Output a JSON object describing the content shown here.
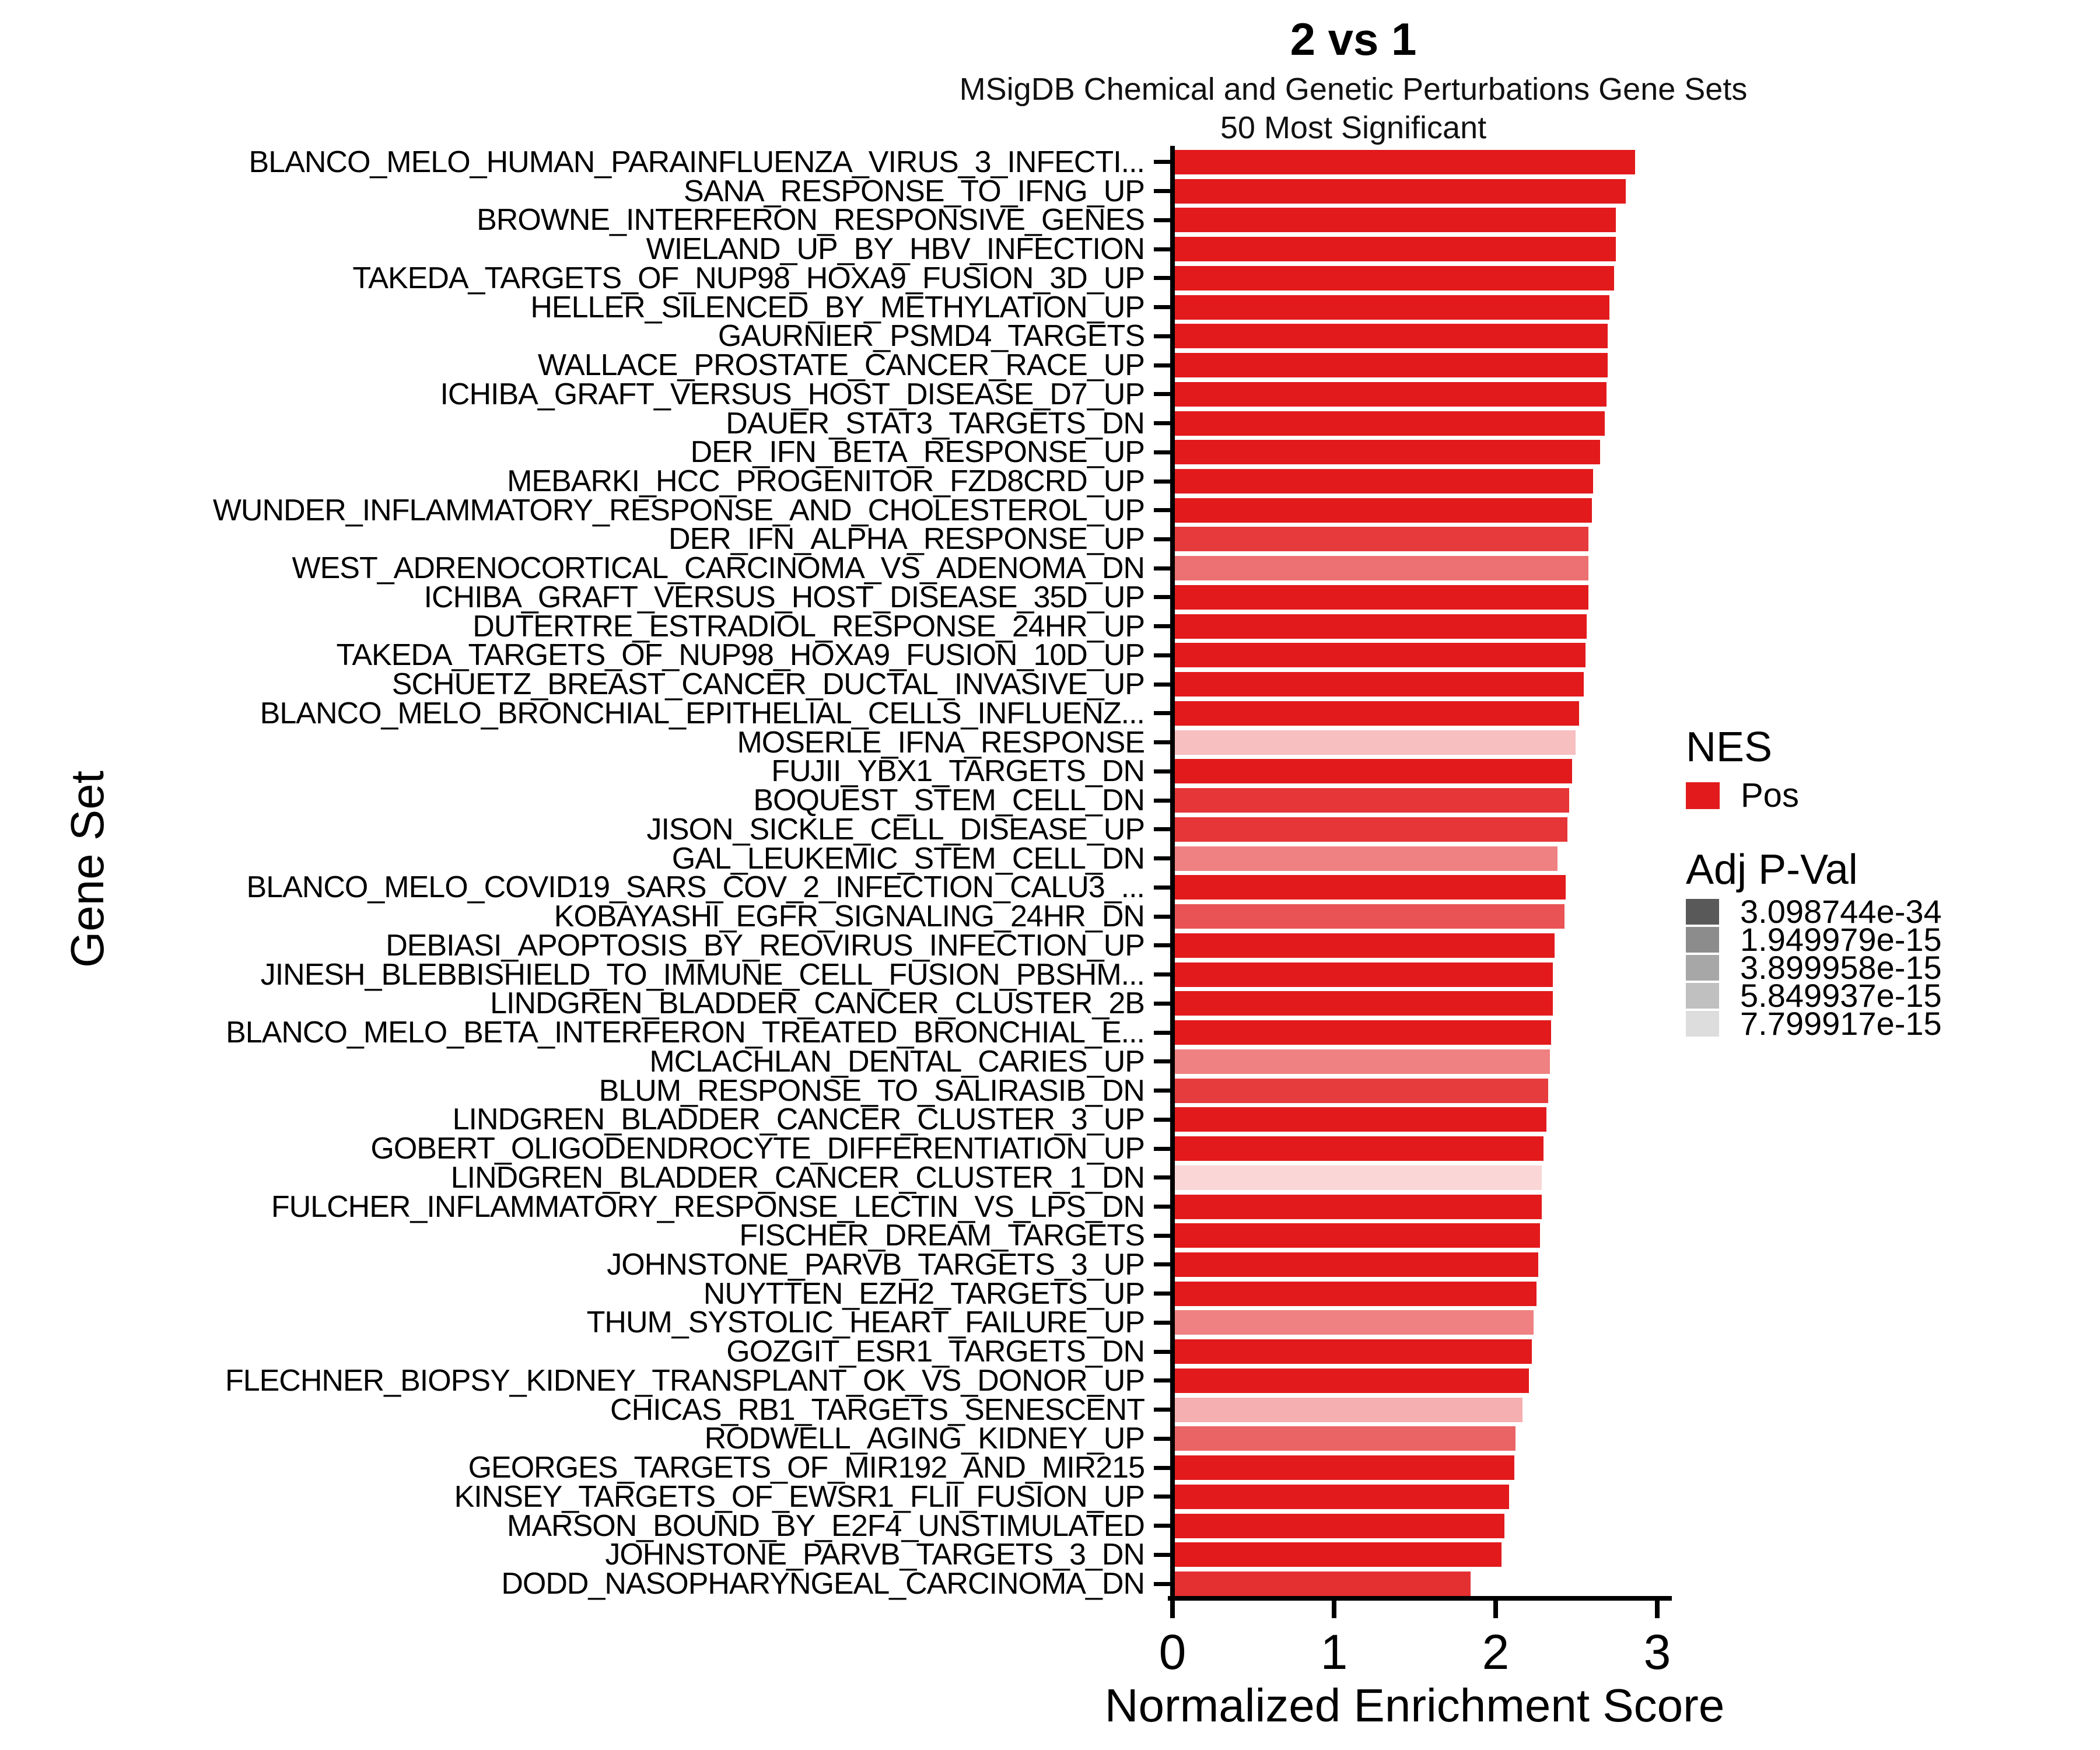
{
  "chart_data": {
    "type": "bar",
    "orientation": "horizontal",
    "title": "2 vs 1",
    "subtitle": [
      "MSigDB Chemical and Genetic Perturbations Gene Sets",
      "50 Most Significant"
    ],
    "xlabel": "Normalized Enrichment Score",
    "ylabel": "Gene Set",
    "xlim": [
      0,
      3
    ],
    "x_ticks": [
      "0",
      "1",
      "2",
      "3"
    ],
    "grid": "off",
    "bar_base_color": "#E21A1C",
    "legend_position": "right",
    "legend": {
      "nes_title": "NES",
      "nes_items": [
        {
          "label": "Pos",
          "color": "#E21A1C"
        }
      ],
      "pval_title": "Adj P-Val",
      "pval_items": [
        {
          "label": "3.098744e-34",
          "color": "#595959"
        },
        {
          "label": "1.949979e-15",
          "color": "#8C8C8C"
        },
        {
          "label": "3.899958e-15",
          "color": "#A7A7A7"
        },
        {
          "label": "5.849937e-15",
          "color": "#C0C0C0"
        },
        {
          "label": "7.799917e-15",
          "color": "#DDDDDD"
        }
      ]
    },
    "rows": [
      {
        "label": "BLANCO_MELO_HUMAN_PARAINFLUENZA_VIRUS_3_INFECTI...",
        "nes": 2.85,
        "alpha": 1
      },
      {
        "label": "SANA_RESPONSE_TO_IFNG_UP",
        "nes": 2.79,
        "alpha": 1
      },
      {
        "label": "BROWNE_INTERFERON_RESPONSIVE_GENES",
        "nes": 2.73,
        "alpha": 1
      },
      {
        "label": "WIELAND_UP_BY_HBV_INFECTION",
        "nes": 2.73,
        "alpha": 1
      },
      {
        "label": "TAKEDA_TARGETS_OF_NUP98_HOXA9_FUSION_3D_UP",
        "nes": 2.72,
        "alpha": 1
      },
      {
        "label": "HELLER_SILENCED_BY_METHYLATION_UP",
        "nes": 2.69,
        "alpha": 1
      },
      {
        "label": "GAURNIER_PSMD4_TARGETS",
        "nes": 2.68,
        "alpha": 1
      },
      {
        "label": "WALLACE_PROSTATE_CANCER_RACE_UP",
        "nes": 2.68,
        "alpha": 1
      },
      {
        "label": "ICHIBA_GRAFT_VERSUS_HOST_DISEASE_D7_UP",
        "nes": 2.67,
        "alpha": 1
      },
      {
        "label": "DAUER_STAT3_TARGETS_DN",
        "nes": 2.66,
        "alpha": 1
      },
      {
        "label": "DER_IFN_BETA_RESPONSE_UP",
        "nes": 2.63,
        "alpha": 1
      },
      {
        "label": "MEBARKI_HCC_PROGENITOR_FZD8CRD_UP",
        "nes": 2.59,
        "alpha": 1
      },
      {
        "label": "WUNDER_INFLAMMATORY_RESPONSE_AND_CHOLESTEROL_UP",
        "nes": 2.58,
        "alpha": 1
      },
      {
        "label": "DER_IFN_ALPHA_RESPONSE_UP",
        "nes": 2.56,
        "alpha": 0.86
      },
      {
        "label": "WEST_ADRENOCORTICAL_CARCINOMA_VS_ADENOMA_DN",
        "nes": 2.56,
        "alpha": 0.62
      },
      {
        "label": "ICHIBA_GRAFT_VERSUS_HOST_DISEASE_35D_UP",
        "nes": 2.56,
        "alpha": 1
      },
      {
        "label": "DUTERTRE_ESTRADIOL_RESPONSE_24HR_UP",
        "nes": 2.55,
        "alpha": 1
      },
      {
        "label": "TAKEDA_TARGETS_OF_NUP98_HOXA9_FUSION_10D_UP",
        "nes": 2.54,
        "alpha": 1
      },
      {
        "label": "SCHUETZ_BREAST_CANCER_DUCTAL_INVASIVE_UP",
        "nes": 2.53,
        "alpha": 1
      },
      {
        "label": "BLANCO_MELO_BRONCHIAL_EPITHELIAL_CELLS_INFLUENZ...",
        "nes": 2.5,
        "alpha": 1
      },
      {
        "label": "MOSERLE_IFNA_RESPONSE",
        "nes": 2.48,
        "alpha": 0.28
      },
      {
        "label": "FUJII_YBX1_TARGETS_DN",
        "nes": 2.46,
        "alpha": 1
      },
      {
        "label": "BOQUEST_STEM_CELL_DN",
        "nes": 2.44,
        "alpha": 0.88
      },
      {
        "label": "JISON_SICKLE_CELL_DISEASE_UP",
        "nes": 2.43,
        "alpha": 0.88
      },
      {
        "label": "GAL_LEUKEMIC_STEM_CELL_DN",
        "nes": 2.37,
        "alpha": 0.55
      },
      {
        "label": "BLANCO_MELO_COVID19_SARS_COV_2_INFECTION_CALU3_...",
        "nes": 2.42,
        "alpha": 1
      },
      {
        "label": "KOBAYASHI_EGFR_SIGNALING_24HR_DN",
        "nes": 2.41,
        "alpha": 0.75
      },
      {
        "label": "DEBIASI_APOPTOSIS_BY_REOVIRUS_INFECTION_UP",
        "nes": 2.35,
        "alpha": 1
      },
      {
        "label": "JINESH_BLEBBISHIELD_TO_IMMUNE_CELL_FUSION_PBSHM...",
        "nes": 2.34,
        "alpha": 1
      },
      {
        "label": "LINDGREN_BLADDER_CANCER_CLUSTER_2B",
        "nes": 2.34,
        "alpha": 1
      },
      {
        "label": "BLANCO_MELO_BETA_INTERFERON_TREATED_BRONCHIAL_E...",
        "nes": 2.33,
        "alpha": 1
      },
      {
        "label": "MCLACHLAN_DENTAL_CARIES_UP",
        "nes": 2.32,
        "alpha": 0.55
      },
      {
        "label": "BLUM_RESPONSE_TO_SALIRASIB_DN",
        "nes": 2.31,
        "alpha": 0.85
      },
      {
        "label": "LINDGREN_BLADDER_CANCER_CLUSTER_3_UP",
        "nes": 2.3,
        "alpha": 1
      },
      {
        "label": "GOBERT_OLIGODENDROCYTE_DIFFERENTIATION_UP",
        "nes": 2.28,
        "alpha": 1
      },
      {
        "label": "LINDGREN_BLADDER_CANCER_CLUSTER_1_DN",
        "nes": 2.27,
        "alpha": 0.18
      },
      {
        "label": "FULCHER_INFLAMMATORY_RESPONSE_LECTIN_VS_LPS_DN",
        "nes": 2.27,
        "alpha": 1
      },
      {
        "label": "FISCHER_DREAM_TARGETS",
        "nes": 2.26,
        "alpha": 1
      },
      {
        "label": "JOHNSTONE_PARVB_TARGETS_3_UP",
        "nes": 2.25,
        "alpha": 1
      },
      {
        "label": "NUYTTEN_EZH2_TARGETS_UP",
        "nes": 2.24,
        "alpha": 1
      },
      {
        "label": "THUM_SYSTOLIC_HEART_FAILURE_UP",
        "nes": 2.22,
        "alpha": 0.55
      },
      {
        "label": "GOZGIT_ESR1_TARGETS_DN",
        "nes": 2.21,
        "alpha": 1
      },
      {
        "label": "FLECHNER_BIOPSY_KIDNEY_TRANSPLANT_OK_VS_DONOR_UP",
        "nes": 2.19,
        "alpha": 1
      },
      {
        "label": "CHICAS_RB1_TARGETS_SENESCENT",
        "nes": 2.15,
        "alpha": 0.35
      },
      {
        "label": "RODWELL_AGING_KIDNEY_UP",
        "nes": 2.11,
        "alpha": 0.68
      },
      {
        "label": "GEORGES_TARGETS_OF_MIR192_AND_MIR215",
        "nes": 2.1,
        "alpha": 1
      },
      {
        "label": "KINSEY_TARGETS_OF_EWSR1_FLII_FUSION_UP",
        "nes": 2.07,
        "alpha": 1
      },
      {
        "label": "MARSON_BOUND_BY_E2F4_UNSTIMULATED",
        "nes": 2.04,
        "alpha": 1
      },
      {
        "label": "JOHNSTONE_PARVB_TARGETS_3_DN",
        "nes": 2.02,
        "alpha": 1
      },
      {
        "label": "DODD_NASOPHARYNGEAL_CARCINOMA_DN",
        "nes": 1.83,
        "alpha": 0.9
      }
    ]
  }
}
